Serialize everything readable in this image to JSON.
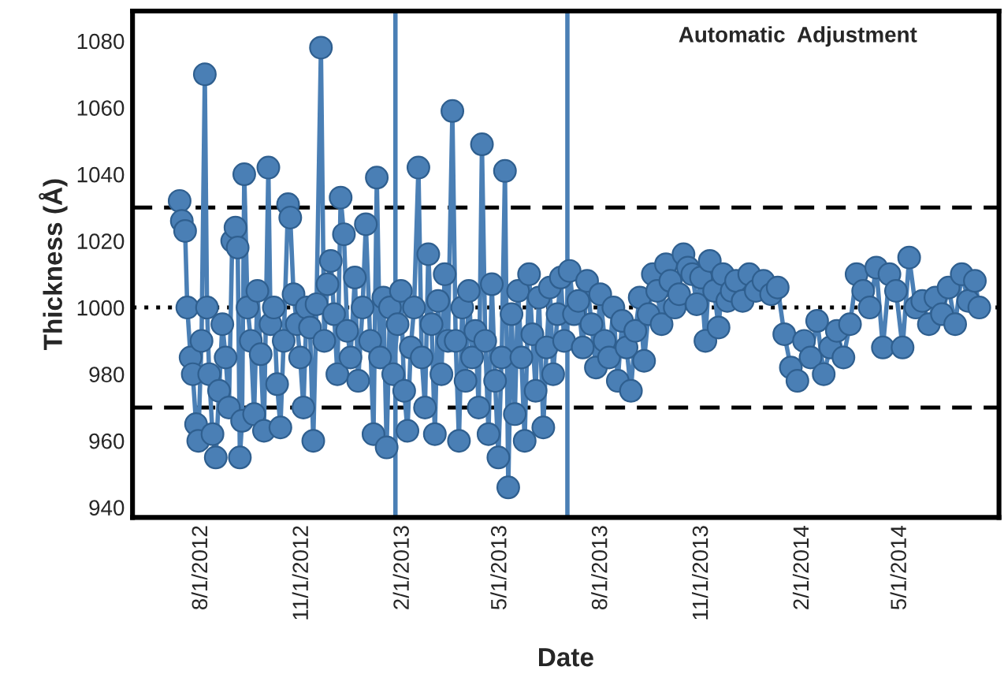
{
  "chart_data": {
    "type": "line",
    "xlabel": "Date",
    "ylabel": "Thickness (Å)",
    "annotations": [
      "Automatic  Adjustment"
    ],
    "xlim": [
      "2012-05-30",
      "2014-07-30"
    ],
    "xticks": [
      {
        "value": "2012-08-01",
        "label": "8/1/2012"
      },
      {
        "value": "2012-11-01",
        "label": "11/1/2012"
      },
      {
        "value": "2013-02-01",
        "label": "2/1/2013"
      },
      {
        "value": "2013-05-01",
        "label": "5/1/2013"
      },
      {
        "value": "2013-08-01",
        "label": "8/1/2013"
      },
      {
        "value": "2013-11-01",
        "label": "11/1/2013"
      },
      {
        "value": "2014-02-01",
        "label": "2/1/2014"
      },
      {
        "value": "2014-05-01",
        "label": "5/1/2014"
      }
    ],
    "ylim": [
      937,
      1089
    ],
    "yticks": [
      940,
      960,
      980,
      1000,
      1020,
      1040,
      1060,
      1080
    ],
    "grid": false,
    "legend": false,
    "marker": "circle",
    "line_style": "solid",
    "ref_lines": [
      {
        "axis": "y",
        "value": 1030,
        "color": "#000000",
        "line_style": "dashed"
      },
      {
        "axis": "y",
        "value": 1000,
        "color": "#000000",
        "line_style": "dotted"
      },
      {
        "axis": "y",
        "value": 970,
        "color": "#000000",
        "line_style": "dashed"
      },
      {
        "axis": "x",
        "value": "2013-01-25",
        "color": "#4a7fb5",
        "line_style": "solid"
      },
      {
        "axis": "x",
        "value": "2013-07-01",
        "color": "#4a7fb5",
        "line_style": "solid"
      }
    ],
    "series": [
      {
        "color": "#4a7fb5",
        "x": [
          "2012-07-12",
          "2012-07-14",
          "2012-07-17",
          "2012-07-19",
          "2012-07-22",
          "2012-07-24",
          "2012-07-27",
          "2012-07-29",
          "2012-08-01",
          "2012-08-04",
          "2012-08-06",
          "2012-08-08",
          "2012-08-11",
          "2012-08-14",
          "2012-08-17",
          "2012-08-20",
          "2012-08-23",
          "2012-08-26",
          "2012-08-29",
          "2012-09-01",
          "2012-09-03",
          "2012-09-05",
          "2012-09-07",
          "2012-09-09",
          "2012-09-12",
          "2012-09-15",
          "2012-09-18",
          "2012-09-21",
          "2012-09-24",
          "2012-09-27",
          "2012-10-01",
          "2012-10-03",
          "2012-10-06",
          "2012-10-09",
          "2012-10-12",
          "2012-10-15",
          "2012-10-19",
          "2012-10-21",
          "2012-10-24",
          "2012-10-27",
          "2012-10-30",
          "2012-11-02",
          "2012-11-05",
          "2012-11-08",
          "2012-11-11",
          "2012-11-14",
          "2012-11-18",
          "2012-11-21",
          "2012-11-24",
          "2012-11-27",
          "2012-11-30",
          "2012-12-03",
          "2012-12-06",
          "2012-12-09",
          "2012-12-12",
          "2012-12-15",
          "2012-12-19",
          "2012-12-22",
          "2012-12-26",
          "2012-12-29",
          "2013-01-02",
          "2013-01-05",
          "2013-01-08",
          "2013-01-11",
          "2013-01-14",
          "2013-01-17",
          "2013-01-20",
          "2013-01-23",
          "2013-01-27",
          "2013-01-30",
          "2013-02-02",
          "2013-02-05",
          "2013-02-08",
          "2013-02-11",
          "2013-02-15",
          "2013-02-18",
          "2013-02-21",
          "2013-02-24",
          "2013-02-27",
          "2013-03-02",
          "2013-03-05",
          "2013-03-08",
          "2013-03-11",
          "2013-03-14",
          "2013-03-18",
          "2013-03-21",
          "2013-03-24",
          "2013-03-27",
          "2013-03-30",
          "2013-04-02",
          "2013-04-05",
          "2013-04-08",
          "2013-04-11",
          "2013-04-14",
          "2013-04-17",
          "2013-04-20",
          "2013-04-23",
          "2013-04-26",
          "2013-04-29",
          "2013-05-02",
          "2013-05-05",
          "2013-05-08",
          "2013-05-11",
          "2013-05-14",
          "2013-05-17",
          "2013-05-20",
          "2013-05-23",
          "2013-05-27",
          "2013-05-30",
          "2013-06-02",
          "2013-06-05",
          "2013-06-09",
          "2013-06-12",
          "2013-06-15",
          "2013-06-18",
          "2013-06-22",
          "2013-06-25",
          "2013-06-28",
          "2013-07-03",
          "2013-07-07",
          "2013-07-11",
          "2013-07-15",
          "2013-07-19",
          "2013-07-23",
          "2013-07-27",
          "2013-07-31",
          "2013-08-04",
          "2013-08-08",
          "2013-08-12",
          "2013-08-16",
          "2013-08-20",
          "2013-08-24",
          "2013-08-28",
          "2013-09-01",
          "2013-09-05",
          "2013-09-09",
          "2013-09-13",
          "2013-09-17",
          "2013-09-21",
          "2013-09-25",
          "2013-09-29",
          "2013-10-03",
          "2013-10-07",
          "2013-10-11",
          "2013-10-15",
          "2013-10-19",
          "2013-10-23",
          "2013-10-27",
          "2013-10-31",
          "2013-11-04",
          "2013-11-08",
          "2013-11-12",
          "2013-11-16",
          "2013-11-20",
          "2013-11-24",
          "2013-11-28",
          "2013-12-02",
          "2013-12-08",
          "2013-12-14",
          "2013-12-20",
          "2013-12-27",
          "2014-01-03",
          "2014-01-09",
          "2014-01-15",
          "2014-01-21",
          "2014-01-27",
          "2014-02-02",
          "2014-02-08",
          "2014-02-14",
          "2014-02-20",
          "2014-02-26",
          "2014-03-04",
          "2014-03-10",
          "2014-03-16",
          "2014-03-22",
          "2014-03-28",
          "2014-04-03",
          "2014-04-09",
          "2014-04-15",
          "2014-04-21",
          "2014-04-27",
          "2014-05-03",
          "2014-05-09",
          "2014-05-15",
          "2014-05-21",
          "2014-05-27",
          "2014-06-02",
          "2014-06-08",
          "2014-06-14",
          "2014-06-20",
          "2014-06-26",
          "2014-07-02",
          "2014-07-08",
          "2014-07-12"
        ],
        "values": [
          1032,
          1026,
          1023,
          1000,
          985,
          980,
          965,
          960,
          990,
          1070,
          1000,
          980,
          962,
          955,
          975,
          995,
          985,
          970,
          1020,
          1024,
          1018,
          955,
          966,
          1040,
          1000,
          990,
          968,
          1005,
          986,
          963,
          1042,
          995,
          1000,
          977,
          964,
          990,
          1031,
          1027,
          1004,
          995,
          985,
          970,
          1000,
          994,
          960,
          1001,
          1078,
          990,
          1007,
          1014,
          998,
          980,
          1033,
          1022,
          993,
          985,
          1009,
          978,
          1000,
          1025,
          990,
          962,
          1039,
          985,
          1003,
          958,
          1000,
          980,
          995,
          1005,
          975,
          963,
          988,
          1000,
          1042,
          985,
          970,
          1016,
          995,
          962,
          1002,
          980,
          1010,
          990,
          1059,
          990,
          960,
          1000,
          978,
          1005,
          985,
          993,
          970,
          1049,
          990,
          962,
          1007,
          978,
          955,
          985,
          1041,
          946,
          998,
          968,
          1005,
          985,
          960,
          1010,
          992,
          975,
          1003,
          964,
          988,
          1006,
          980,
          998,
          1009,
          990,
          1011,
          998,
          1002,
          988,
          1008,
          995,
          982,
          1004,
          990,
          985,
          1000,
          978,
          996,
          988,
          975,
          993,
          1003,
          984,
          998,
          1010,
          1005,
          995,
          1013,
          1008,
          1000,
          1004,
          1016,
          1012,
          1010,
          1001,
          1009,
          990,
          1014,
          1005,
          994,
          1010,
          1002,
          1005,
          1008,
          1002,
          1010,
          1005,
          1008,
          1004,
          1006,
          992,
          982,
          978,
          990,
          985,
          996,
          980,
          988,
          993,
          985,
          995,
          1010,
          1005,
          1000,
          1012,
          988,
          1010,
          1005,
          988,
          1015,
          1000,
          1002,
          995,
          1003,
          998,
          1006,
          995,
          1010,
          1002,
          1008,
          1000
        ]
      }
    ]
  }
}
